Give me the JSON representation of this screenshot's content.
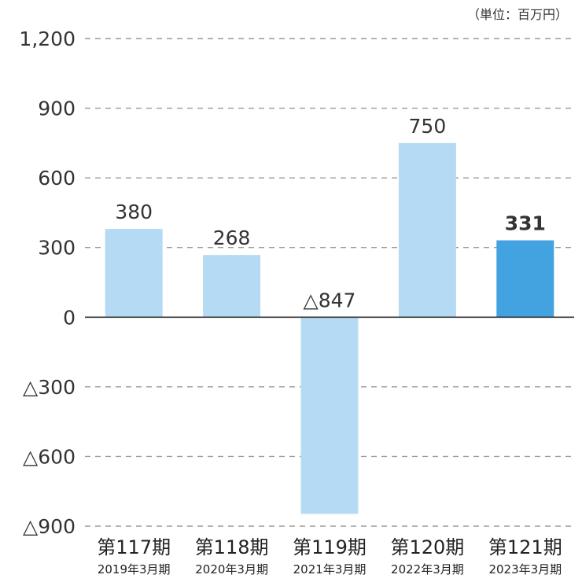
{
  "chart_data": {
    "type": "bar",
    "unit_note": "（単位：百万円）",
    "categories": [
      "第117期",
      "第118期",
      "第119期",
      "第120期",
      "第121期"
    ],
    "sublabels": [
      "2019年3月期",
      "2020年3月期",
      "2021年3月期",
      "2022年3月期",
      "2023年3月期"
    ],
    "values": [
      380,
      268,
      -847,
      750,
      331
    ],
    "value_labels": [
      "380",
      "268",
      "△847",
      "750",
      "331"
    ],
    "highlight_index": 4,
    "ylim": [
      -900,
      1200
    ],
    "yticks": [
      1200,
      900,
      600,
      300,
      0,
      -300,
      -600,
      -900
    ],
    "ytick_labels": [
      "1,200",
      "900",
      "600",
      "300",
      "0",
      "△300",
      "△600",
      "△900"
    ],
    "grid": true,
    "colors": {
      "bar": "#b5dbf4",
      "highlight": "#43a3e0",
      "grid": "#9a9a9a",
      "zero_line": "#333333",
      "text": "#333333"
    }
  }
}
